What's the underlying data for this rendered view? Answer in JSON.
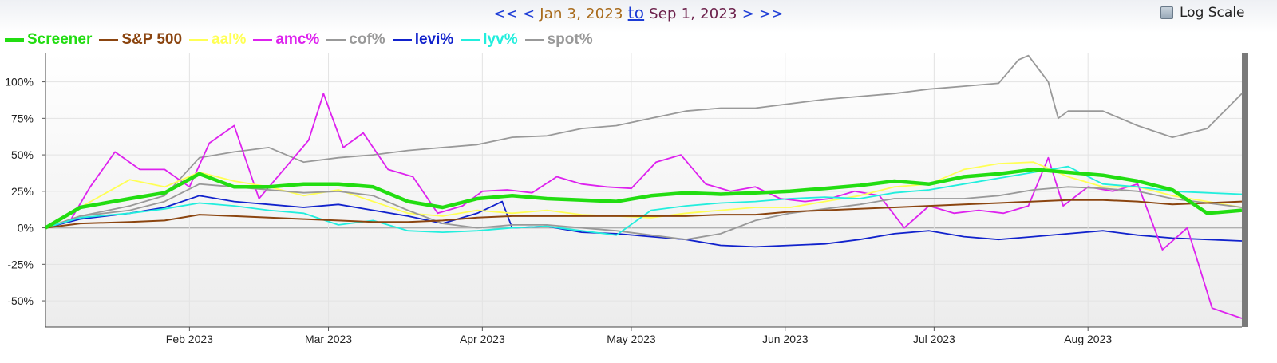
{
  "nav": {
    "first": "<<",
    "prev": "<",
    "start_date": "Jan 3, 2023",
    "to": "to",
    "end_date": "Sep 1, 2023",
    "next": ">",
    "last": ">>"
  },
  "log_scale": {
    "label": "Log Scale",
    "checked": false
  },
  "colors": {
    "Screener": "#22dd11",
    "S&P 500": "#8b4510",
    "aal%": "#ffff55",
    "amc%": "#dd22ee",
    "cof%": "#999999",
    "levi%": "#1122cc",
    "lyv%": "#22eedd",
    "spot%": "#999999"
  },
  "chart_data": {
    "type": "line",
    "x_start": "2023-01-03",
    "x_end": "2023-09-01",
    "ylim": [
      -68,
      120
    ],
    "yticks": [
      100,
      75,
      50,
      25,
      0,
      -25,
      -50
    ],
    "ytick_labels": [
      "100%",
      "75%",
      "50%",
      "25%",
      "0%",
      "-25%",
      "-50%"
    ],
    "xtick_dates": [
      "2023-02-01",
      "2023-03-01",
      "2023-04-01",
      "2023-05-01",
      "2023-06-01",
      "2023-07-01",
      "2023-08-01"
    ],
    "xtick_labels": [
      "Feb 2023",
      "Mar 2023",
      "Apr 2023",
      "May 2023",
      "Jun 2023",
      "Jul 2023",
      "Aug 2023"
    ],
    "grid": true,
    "legend_position": "top-left",
    "series": [
      {
        "name": "spot%",
        "dates": [
          "2023-01-03",
          "2023-01-10",
          "2023-01-20",
          "2023-01-27",
          "2023-02-03",
          "2023-02-10",
          "2023-02-17",
          "2023-02-24",
          "2023-03-03",
          "2023-03-10",
          "2023-03-17",
          "2023-03-24",
          "2023-03-31",
          "2023-04-07",
          "2023-04-14",
          "2023-04-21",
          "2023-04-28",
          "2023-05-05",
          "2023-05-12",
          "2023-05-19",
          "2023-05-26",
          "2023-06-02",
          "2023-06-09",
          "2023-06-16",
          "2023-06-23",
          "2023-06-30",
          "2023-07-07",
          "2023-07-14",
          "2023-07-18",
          "2023-07-20",
          "2023-07-24",
          "2023-07-26",
          "2023-07-28",
          "2023-08-04",
          "2023-08-11",
          "2023-08-18",
          "2023-08-25",
          "2023-09-01"
        ],
        "values": [
          0,
          8,
          15,
          22,
          48,
          52,
          55,
          45,
          48,
          50,
          53,
          55,
          57,
          62,
          63,
          68,
          70,
          75,
          80,
          82,
          82,
          85,
          88,
          90,
          92,
          95,
          97,
          99,
          115,
          118,
          100,
          75,
          80,
          80,
          70,
          62,
          68,
          92
        ]
      },
      {
        "name": "levi%",
        "dates": [
          "2023-01-03",
          "2023-01-10",
          "2023-01-20",
          "2023-01-27",
          "2023-02-03",
          "2023-02-10",
          "2023-02-17",
          "2023-02-24",
          "2023-03-03",
          "2023-03-10",
          "2023-03-17",
          "2023-03-24",
          "2023-03-31",
          "2023-04-05",
          "2023-04-07",
          "2023-04-14",
          "2023-04-21",
          "2023-04-28",
          "2023-05-05",
          "2023-05-12",
          "2023-05-19",
          "2023-05-26",
          "2023-06-02",
          "2023-06-09",
          "2023-06-16",
          "2023-06-23",
          "2023-06-30",
          "2023-07-07",
          "2023-07-14",
          "2023-07-21",
          "2023-07-28",
          "2023-08-04",
          "2023-08-11",
          "2023-08-18",
          "2023-08-25",
          "2023-09-01"
        ],
        "values": [
          0,
          6,
          10,
          14,
          22,
          18,
          16,
          14,
          16,
          12,
          8,
          3,
          10,
          18,
          0,
          1,
          -3,
          -4,
          -6,
          -8,
          -12,
          -13,
          -12,
          -11,
          -8,
          -4,
          -2,
          -6,
          -8,
          -6,
          -4,
          -2,
          -5,
          -7,
          -8,
          -9
        ]
      },
      {
        "name": "amc%",
        "dates": [
          "2023-01-03",
          "2023-01-08",
          "2023-01-12",
          "2023-01-17",
          "2023-01-22",
          "2023-01-27",
          "2023-02-01",
          "2023-02-05",
          "2023-02-10",
          "2023-02-15",
          "2023-02-20",
          "2023-02-25",
          "2023-02-28",
          "2023-03-04",
          "2023-03-08",
          "2023-03-13",
          "2023-03-18",
          "2023-03-23",
          "2023-03-28",
          "2023-04-01",
          "2023-04-06",
          "2023-04-11",
          "2023-04-16",
          "2023-04-21",
          "2023-04-26",
          "2023-05-01",
          "2023-05-06",
          "2023-05-11",
          "2023-05-16",
          "2023-05-21",
          "2023-05-26",
          "2023-05-31",
          "2023-06-05",
          "2023-06-10",
          "2023-06-15",
          "2023-06-20",
          "2023-06-25",
          "2023-06-30",
          "2023-07-05",
          "2023-07-10",
          "2023-07-15",
          "2023-07-20",
          "2023-07-24",
          "2023-07-27",
          "2023-08-01",
          "2023-08-06",
          "2023-08-11",
          "2023-08-16",
          "2023-08-21",
          "2023-08-26",
          "2023-09-01"
        ],
        "values": [
          0,
          5,
          28,
          52,
          40,
          40,
          28,
          58,
          70,
          20,
          40,
          60,
          92,
          55,
          65,
          40,
          35,
          10,
          15,
          25,
          26,
          24,
          35,
          30,
          28,
          27,
          45,
          50,
          30,
          25,
          28,
          20,
          18,
          20,
          25,
          22,
          0,
          15,
          10,
          12,
          10,
          15,
          48,
          15,
          28,
          25,
          30,
          -15,
          0,
          -55,
          -62
        ]
      },
      {
        "name": "aal%",
        "dates": [
          "2023-01-03",
          "2023-01-10",
          "2023-01-20",
          "2023-01-27",
          "2023-02-03",
          "2023-02-10",
          "2023-02-17",
          "2023-02-24",
          "2023-03-03",
          "2023-03-10",
          "2023-03-17",
          "2023-03-24",
          "2023-03-31",
          "2023-04-07",
          "2023-04-14",
          "2023-04-21",
          "2023-04-28",
          "2023-05-05",
          "2023-05-12",
          "2023-05-19",
          "2023-05-26",
          "2023-06-02",
          "2023-06-09",
          "2023-06-16",
          "2023-06-23",
          "2023-06-30",
          "2023-07-07",
          "2023-07-14",
          "2023-07-21",
          "2023-07-28",
          "2023-08-04",
          "2023-08-11",
          "2023-08-18",
          "2023-08-25",
          "2023-09-01"
        ],
        "values": [
          0,
          14,
          33,
          28,
          38,
          32,
          28,
          22,
          26,
          18,
          10,
          8,
          12,
          10,
          12,
          9,
          8,
          7,
          10,
          12,
          14,
          14,
          18,
          22,
          28,
          30,
          40,
          44,
          45,
          35,
          28,
          28,
          22,
          18,
          14
        ]
      },
      {
        "name": "cof%",
        "dates": [
          "2023-01-03",
          "2023-01-10",
          "2023-01-20",
          "2023-01-27",
          "2023-02-03",
          "2023-02-10",
          "2023-02-17",
          "2023-02-24",
          "2023-03-03",
          "2023-03-10",
          "2023-03-17",
          "2023-03-24",
          "2023-03-31",
          "2023-04-07",
          "2023-04-14",
          "2023-04-21",
          "2023-04-28",
          "2023-05-05",
          "2023-05-12",
          "2023-05-19",
          "2023-05-26",
          "2023-06-02",
          "2023-06-09",
          "2023-06-16",
          "2023-06-23",
          "2023-06-30",
          "2023-07-07",
          "2023-07-14",
          "2023-07-21",
          "2023-07-28",
          "2023-08-04",
          "2023-08-11",
          "2023-08-18",
          "2023-08-25",
          "2023-09-01"
        ],
        "values": [
          0,
          8,
          12,
          18,
          30,
          28,
          26,
          24,
          25,
          22,
          12,
          3,
          0,
          2,
          2,
          0,
          -2,
          -5,
          -8,
          -4,
          5,
          10,
          13,
          16,
          20,
          20,
          20,
          22,
          26,
          28,
          27,
          25,
          20,
          17,
          14
        ]
      },
      {
        "name": "lyv%",
        "dates": [
          "2023-01-03",
          "2023-01-10",
          "2023-01-20",
          "2023-01-27",
          "2023-02-03",
          "2023-02-10",
          "2023-02-17",
          "2023-02-24",
          "2023-03-03",
          "2023-03-10",
          "2023-03-17",
          "2023-03-24",
          "2023-03-31",
          "2023-04-07",
          "2023-04-14",
          "2023-04-21",
          "2023-04-28",
          "2023-05-05",
          "2023-05-12",
          "2023-05-19",
          "2023-05-26",
          "2023-06-02",
          "2023-06-09",
          "2023-06-16",
          "2023-06-23",
          "2023-06-30",
          "2023-07-07",
          "2023-07-14",
          "2023-07-21",
          "2023-07-28",
          "2023-08-04",
          "2023-08-11",
          "2023-08-18",
          "2023-08-25",
          "2023-09-01"
        ],
        "values": [
          0,
          7,
          10,
          13,
          17,
          15,
          12,
          10,
          2,
          5,
          -2,
          -3,
          -2,
          0,
          1,
          -2,
          -5,
          12,
          15,
          17,
          18,
          20,
          21,
          20,
          24,
          26,
          30,
          34,
          38,
          42,
          30,
          28,
          25,
          24,
          23
        ]
      },
      {
        "name": "S&P 500",
        "dates": [
          "2023-01-03",
          "2023-01-10",
          "2023-01-20",
          "2023-01-27",
          "2023-02-03",
          "2023-02-10",
          "2023-02-17",
          "2023-02-24",
          "2023-03-03",
          "2023-03-10",
          "2023-03-17",
          "2023-03-24",
          "2023-03-31",
          "2023-04-07",
          "2023-04-14",
          "2023-04-21",
          "2023-04-28",
          "2023-05-05",
          "2023-05-12",
          "2023-05-19",
          "2023-05-26",
          "2023-06-02",
          "2023-06-09",
          "2023-06-16",
          "2023-06-23",
          "2023-06-30",
          "2023-07-07",
          "2023-07-14",
          "2023-07-21",
          "2023-07-28",
          "2023-08-04",
          "2023-08-11",
          "2023-08-18",
          "2023-08-25",
          "2023-09-01"
        ],
        "values": [
          0,
          3,
          4,
          5,
          9,
          8,
          7,
          6,
          5,
          4,
          4,
          5,
          7,
          8,
          8,
          8,
          8,
          8,
          8,
          9,
          9,
          11,
          12,
          13,
          14,
          15,
          16,
          17,
          18,
          19,
          19,
          18,
          16,
          17,
          18
        ]
      },
      {
        "name": "Screener",
        "dates": [
          "2023-01-03",
          "2023-01-10",
          "2023-01-20",
          "2023-01-27",
          "2023-02-03",
          "2023-02-10",
          "2023-02-17",
          "2023-02-24",
          "2023-03-03",
          "2023-03-10",
          "2023-03-17",
          "2023-03-24",
          "2023-03-31",
          "2023-04-07",
          "2023-04-14",
          "2023-04-21",
          "2023-04-28",
          "2023-05-05",
          "2023-05-12",
          "2023-05-19",
          "2023-05-26",
          "2023-06-02",
          "2023-06-09",
          "2023-06-16",
          "2023-06-23",
          "2023-06-30",
          "2023-07-07",
          "2023-07-14",
          "2023-07-21",
          "2023-07-28",
          "2023-08-04",
          "2023-08-11",
          "2023-08-18",
          "2023-08-25",
          "2023-09-01"
        ],
        "values": [
          0,
          14,
          20,
          24,
          37,
          28,
          28,
          30,
          30,
          28,
          18,
          14,
          20,
          22,
          20,
          19,
          18,
          22,
          24,
          23,
          24,
          25,
          27,
          29,
          32,
          30,
          35,
          37,
          40,
          38,
          36,
          32,
          26,
          10,
          12
        ]
      }
    ]
  }
}
